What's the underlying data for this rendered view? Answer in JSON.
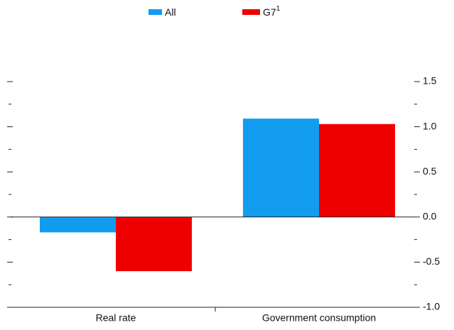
{
  "chart_data": {
    "type": "bar",
    "categories": [
      "Real rate",
      "Government consumption"
    ],
    "series": [
      {
        "name": "All",
        "color": "#129cf0",
        "values": [
          -0.17,
          1.09
        ]
      },
      {
        "name": "G7",
        "superscript": "1",
        "color": "#ee0000",
        "values": [
          -0.6,
          1.03
        ]
      }
    ],
    "ylim": [
      -1,
      1.5
    ],
    "yticks": [
      {
        "value": -1,
        "label": "-1.0"
      },
      -0.5,
      {
        "value": 0,
        "label": "0.0"
      },
      0.5,
      {
        "value": 1,
        "label": "1.0"
      },
      1.5
    ]
  }
}
